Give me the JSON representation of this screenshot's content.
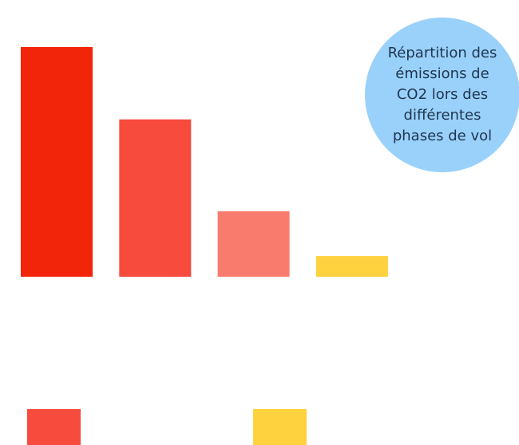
{
  "chart_data": {
    "type": "bar",
    "title": "Répartition des émissions de CO2 lors des différentes phases de vol",
    "categories": [
      "",
      "",
      "",
      ""
    ],
    "values": [
      100,
      68.5,
      28.5,
      9
    ],
    "colors": [
      "#f2240a",
      "#f74c3d",
      "#f97b6d",
      "#fdd23e"
    ],
    "ylim": [
      0,
      100
    ],
    "grid": false,
    "legend": {
      "position": "bottom",
      "entries": [
        {
          "swatch_color": "#f74c3d",
          "label": ""
        },
        {
          "swatch_color": "#fdd23e",
          "label": ""
        }
      ]
    }
  }
}
